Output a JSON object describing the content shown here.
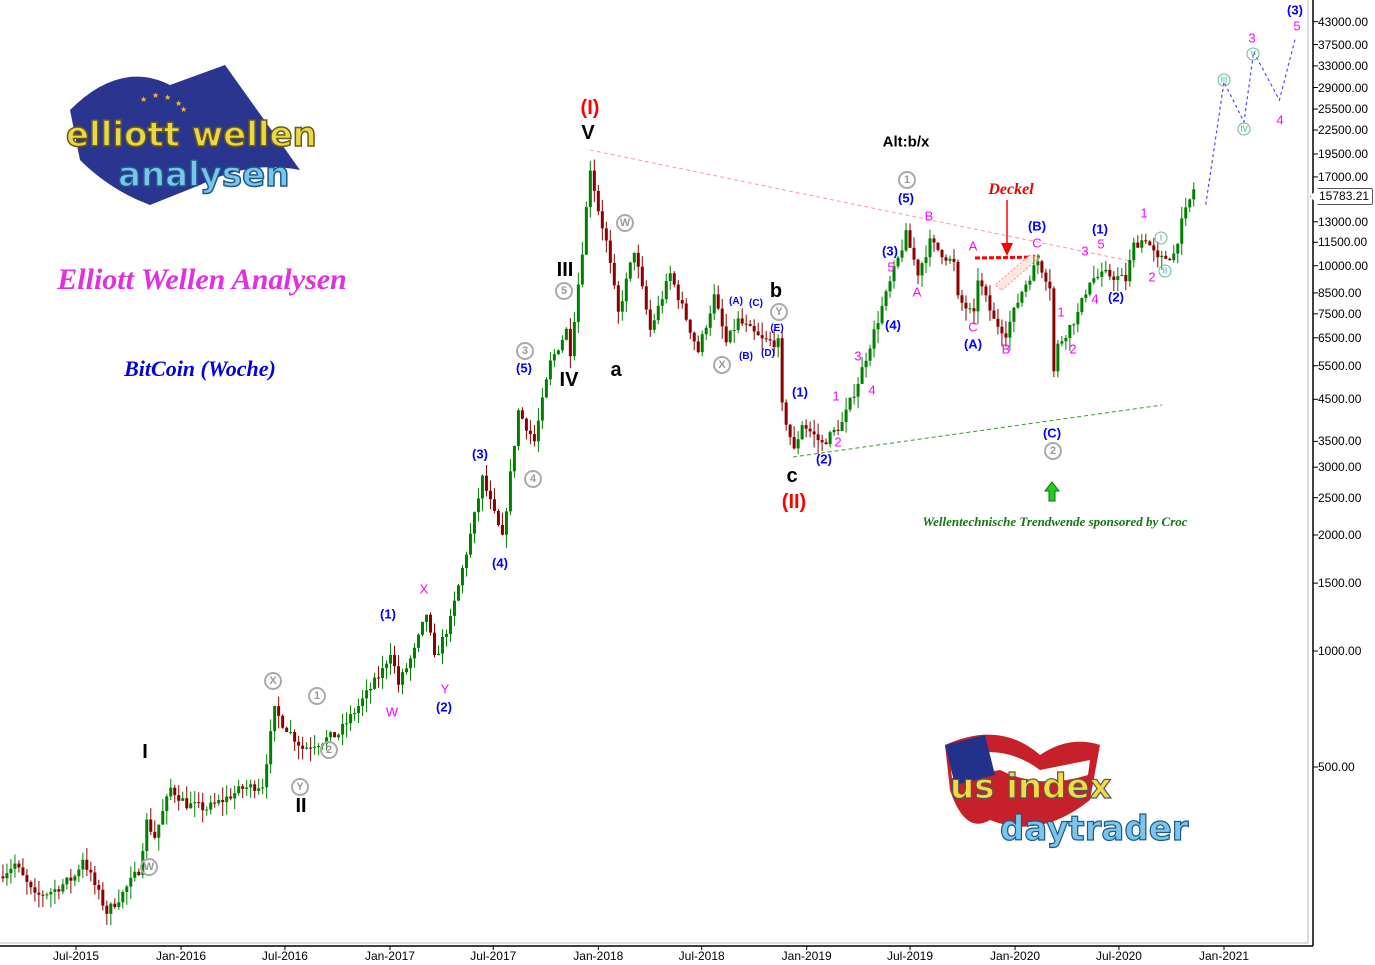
{
  "chart_data": {
    "type": "candlestick",
    "title": "BitCoin (Woche)",
    "header": "Elliott Wellen Analysen",
    "y_scale": "log",
    "ylim": [
      150,
      46000
    ],
    "y_ticks": [
      "43000.00",
      "37500.00",
      "33000.00",
      "29000.00",
      "25500.00",
      "22500.00",
      "19500.00",
      "17000.00",
      "13000.00",
      "11500.00",
      "10000.00",
      "8500.00",
      "7500.00",
      "6500.00",
      "5500.00",
      "4500.00",
      "3500.00",
      "3000.00",
      "2500.00",
      "2000.00",
      "1500.00",
      "1000.00",
      "500.00"
    ],
    "x_ticks": [
      "Jul-2015",
      "Jan-2016",
      "Jul-2016",
      "Jan-2017",
      "Jul-2017",
      "Jan-2018",
      "Jul-2018",
      "Jan-2019",
      "Jul-2019",
      "Jan-2020",
      "Jul-2020",
      "Jan-2021"
    ],
    "last_price": "15783.21",
    "grid": false,
    "colors": {
      "up": "#008000",
      "down": "#8b0000",
      "projection": "#4a4aff",
      "resistance_line": "#ff9999",
      "support_line": "#339933",
      "deckel": "#ff0000"
    },
    "price_path": [
      [
        "2015-02-16",
        260
      ],
      [
        "2015-03-16",
        280
      ],
      [
        "2015-04-20",
        230
      ],
      [
        "2015-05-25",
        240
      ],
      [
        "2015-06-29",
        260
      ],
      [
        "2015-07-13",
        290
      ],
      [
        "2015-08-24",
        210
      ],
      [
        "2015-09-21",
        235
      ],
      [
        "2015-10-19",
        270
      ],
      [
        "2015-11-02",
        360
      ],
      [
        "2015-11-16",
        330
      ],
      [
        "2015-12-14",
        440
      ],
      [
        "2016-01-11",
        400
      ],
      [
        "2016-02-15",
        390
      ],
      [
        "2016-03-14",
        410
      ],
      [
        "2016-04-18",
        440
      ],
      [
        "2016-05-23",
        450
      ],
      [
        "2016-06-13",
        700
      ],
      [
        "2016-06-27",
        650
      ],
      [
        "2016-08-01",
        560
      ],
      [
        "2016-08-29",
        580
      ],
      [
        "2016-10-03",
        610
      ],
      [
        "2016-11-07",
        720
      ],
      [
        "2016-12-19",
        890
      ],
      [
        "2017-01-02",
        1000
      ],
      [
        "2017-01-16",
        820
      ],
      [
        "2017-02-13",
        1000
      ],
      [
        "2017-03-06",
        1250
      ],
      [
        "2017-03-20",
        950
      ],
      [
        "2017-04-17",
        1200
      ],
      [
        "2017-05-22",
        2000
      ],
      [
        "2017-06-12",
        2800
      ],
      [
        "2017-07-17",
        1950
      ],
      [
        "2017-08-14",
        4200
      ],
      [
        "2017-09-11",
        3500
      ],
      [
        "2017-10-09",
        5600
      ],
      [
        "2017-11-06",
        6800
      ],
      [
        "2017-11-13",
        6000
      ],
      [
        "2017-12-04",
        11000
      ],
      [
        "2017-12-18",
        18000
      ],
      [
        "2018-01-01",
        14000
      ],
      [
        "2018-01-15",
        11500
      ],
      [
        "2018-02-05",
        7500
      ],
      [
        "2018-03-05",
        11000
      ],
      [
        "2018-04-02",
        6800
      ],
      [
        "2018-05-07",
        9500
      ],
      [
        "2018-06-25",
        6000
      ],
      [
        "2018-07-23",
        8300
      ],
      [
        "2018-08-13",
        6300
      ],
      [
        "2018-09-03",
        7200
      ],
      [
        "2018-10-15",
        6400
      ],
      [
        "2018-11-12",
        6300
      ],
      [
        "2018-11-19",
        4300
      ],
      [
        "2018-12-10",
        3300
      ],
      [
        "2018-12-24",
        3900
      ],
      [
        "2019-01-28",
        3450
      ],
      [
        "2019-03-04",
        3900
      ],
      [
        "2019-04-01",
        5000
      ],
      [
        "2019-05-13",
        7800
      ],
      [
        "2019-06-24",
        12000
      ],
      [
        "2019-07-15",
        9600
      ],
      [
        "2019-08-05",
        11500
      ],
      [
        "2019-09-16",
        10100
      ],
      [
        "2019-09-23",
        8200
      ],
      [
        "2019-10-21",
        7400
      ],
      [
        "2019-10-28",
        9300
      ],
      [
        "2019-11-25",
        7200
      ],
      [
        "2019-12-16",
        6700
      ],
      [
        "2020-01-13",
        8600
      ],
      [
        "2020-02-10",
        10300
      ],
      [
        "2020-03-02",
        8900
      ],
      [
        "2020-03-09",
        5300
      ],
      [
        "2020-03-16",
        6200
      ],
      [
        "2020-04-20",
        7500
      ],
      [
        "2020-05-11",
        9200
      ],
      [
        "2020-06-08",
        9500
      ],
      [
        "2020-07-13",
        9200
      ],
      [
        "2020-07-27",
        11300
      ],
      [
        "2020-08-17",
        11800
      ],
      [
        "2020-09-07",
        10300
      ],
      [
        "2020-10-05",
        10700
      ],
      [
        "2020-10-19",
        12900
      ],
      [
        "2020-11-09",
        15783
      ]
    ],
    "projection": [
      [
        "2020-11-30",
        14400
      ],
      [
        "2021-01-01",
        30000
      ],
      [
        "2021-02-05",
        23600
      ],
      [
        "2021-02-22",
        35900
      ],
      [
        "2021-04-08",
        26900
      ],
      [
        "2021-05-06",
        39000
      ]
    ],
    "annotations": [
      {
        "text": "(I)",
        "style": "red"
      },
      {
        "text": "(II)",
        "style": "red"
      },
      {
        "text": "V",
        "style": "blk"
      },
      {
        "text": "III",
        "style": "blk"
      },
      {
        "text": "IV",
        "style": "blk"
      },
      {
        "text": "I",
        "style": "blk"
      },
      {
        "text": "II",
        "style": "blk"
      },
      {
        "text": "a",
        "style": "blk"
      },
      {
        "text": "b",
        "style": "blk"
      },
      {
        "text": "c",
        "style": "blk"
      },
      {
        "text": "Alt:b/x",
        "style": "blks"
      },
      {
        "text": "5",
        "style": "circ"
      },
      {
        "text": "3",
        "style": "circ"
      },
      {
        "text": "4",
        "style": "circ"
      },
      {
        "text": "W",
        "style": "circ"
      },
      {
        "text": "X",
        "style": "circ"
      },
      {
        "text": "Y",
        "style": "circ"
      },
      {
        "text": "X",
        "style": "circ"
      },
      {
        "text": "1",
        "style": "circ"
      },
      {
        "text": "2",
        "style": "circ"
      },
      {
        "text": "Y",
        "style": "circ"
      },
      {
        "text": "W",
        "style": "circ"
      },
      {
        "text": "1",
        "style": "circ"
      },
      {
        "text": "2",
        "style": "circ"
      },
      {
        "text": "(5)",
        "style": "blu"
      },
      {
        "text": "(3)",
        "style": "blu"
      },
      {
        "text": "(4)",
        "style": "blu"
      },
      {
        "text": "(1)",
        "style": "blu"
      },
      {
        "text": "(2)",
        "style": "blu"
      },
      {
        "text": "(A)",
        "style": "blus"
      },
      {
        "text": "(B)",
        "style": "blus"
      },
      {
        "text": "(C)",
        "style": "blus"
      },
      {
        "text": "(D)",
        "style": "blus"
      },
      {
        "text": "(E)",
        "style": "blus"
      },
      {
        "text": "(1)",
        "style": "blu"
      },
      {
        "text": "(2)",
        "style": "blu"
      },
      {
        "text": "(5)",
        "style": "blu"
      },
      {
        "text": "(3)",
        "style": "blu"
      },
      {
        "text": "(4)",
        "style": "blu"
      },
      {
        "text": "(A)",
        "style": "blu"
      },
      {
        "text": "(B)",
        "style": "blu"
      },
      {
        "text": "(C)",
        "style": "blu"
      },
      {
        "text": "(1)",
        "style": "blu"
      },
      {
        "text": "(2)",
        "style": "blu"
      },
      {
        "text": "(3)",
        "style": "blu"
      },
      {
        "text": "X",
        "style": "mag"
      },
      {
        "text": "W",
        "style": "mag"
      },
      {
        "text": "Y",
        "style": "mag"
      },
      {
        "text": "1",
        "style": "mag"
      },
      {
        "text": "2",
        "style": "mag"
      },
      {
        "text": "3",
        "style": "mag"
      },
      {
        "text": "4",
        "style": "mag"
      },
      {
        "text": "5",
        "style": "mag"
      },
      {
        "text": "A",
        "style": "mag"
      },
      {
        "text": "B",
        "style": "mag"
      },
      {
        "text": "A",
        "style": "mag"
      },
      {
        "text": "C",
        "style": "mag"
      },
      {
        "text": "B",
        "style": "mag"
      },
      {
        "text": "C",
        "style": "mag"
      },
      {
        "text": "1",
        "style": "mag"
      },
      {
        "text": "2",
        "style": "mag"
      },
      {
        "text": "3",
        "style": "mag"
      },
      {
        "text": "5",
        "style": "mag"
      },
      {
        "text": "4",
        "style": "mag"
      },
      {
        "text": "1",
        "style": "mag"
      },
      {
        "text": "2",
        "style": "mag"
      },
      {
        "text": "3",
        "style": "mag"
      },
      {
        "text": "4",
        "style": "mag"
      },
      {
        "text": "5",
        "style": "mag"
      },
      {
        "text": "I",
        "style": "teal"
      },
      {
        "text": "II",
        "style": "teal"
      },
      {
        "text": "III",
        "style": "teal"
      },
      {
        "text": "IV",
        "style": "teal"
      },
      {
        "text": "V",
        "style": "teal"
      }
    ],
    "deckel_label": "Deckel",
    "sponsor_text": "Wellentechnische Trendwende sponsored by Croc"
  },
  "logos": {
    "top_left": "elliott wellen analysen",
    "bottom_right": "us index daytrader"
  }
}
